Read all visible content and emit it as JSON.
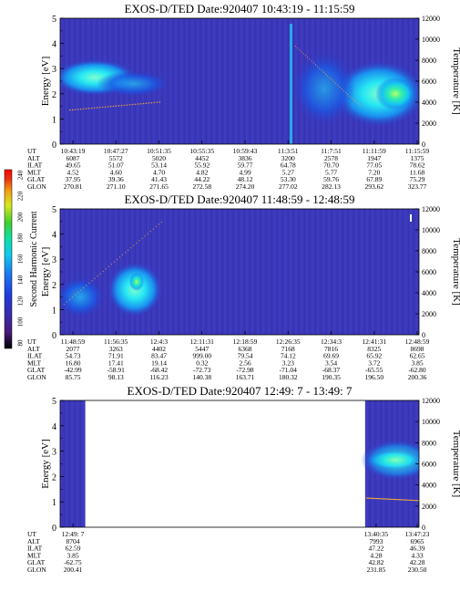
{
  "figure": {
    "colorbar": {
      "label": "Second Harmonic Current",
      "ticks": [
        "80",
        "100",
        "120",
        "140",
        "160",
        "180",
        "200",
        "220",
        "240"
      ],
      "colors": [
        "#000000",
        "#4a1a7a",
        "#3a2aa8",
        "#1e3ce0",
        "#1a7af0",
        "#11c8f0",
        "#11e0a0",
        "#3ad030",
        "#d8e820",
        "#f0a010",
        "#e83010",
        "#ff0000"
      ]
    },
    "row_labels": [
      "UT",
      "ALT",
      "ILAT",
      "MLT",
      "GLAT",
      "GLON"
    ]
  },
  "chart_data": [
    {
      "type": "heatmap",
      "title": "EXOS-D/TED   Date:920407  10:43:19 - 11:15:59",
      "ylabel": "Energy [eV]",
      "y2label": "Temperature [K]",
      "ylim": [
        0,
        5
      ],
      "y2lim": [
        0,
        12000
      ],
      "yticks": [
        "0",
        "1",
        "2",
        "3",
        "4",
        "5"
      ],
      "y2ticks": [
        "0",
        "2000",
        "4000",
        "6000",
        "8000",
        "10000",
        "12000"
      ],
      "data_intervals": [
        [
          0.0,
          1.0
        ]
      ],
      "ephemeris": {
        "UT": [
          "10:43:19",
          "10:47:27",
          "10:51:35",
          "10:55:35",
          "10:59:43",
          "11:3:51",
          "11:7:51",
          "11:11:59",
          "11:15:59"
        ],
        "ALT": [
          "6087",
          "5572",
          "5020",
          "4452",
          "3836",
          "3200",
          "2578",
          "1947",
          "1375"
        ],
        "ILAT": [
          "49.65",
          "51.07",
          "53.14",
          "55.92",
          "59.77",
          "64.78",
          "70.70",
          "77.05",
          "78.62"
        ],
        "MLT": [
          "4.52",
          "4.60",
          "4.70",
          "4.82",
          "4.99",
          "5.27",
          "5.77",
          "7.20",
          "11.68"
        ],
        "GLAT": [
          "37.95",
          "39.36",
          "41.43",
          "44.22",
          "48.12",
          "53.30",
          "59.76",
          "67.89",
          "75.29"
        ],
        "GLON": [
          "270.81",
          "271.10",
          "271.65",
          "272.58",
          "274.20",
          "277.02",
          "282.13",
          "293.62",
          "323.77"
        ]
      }
    },
    {
      "type": "heatmap",
      "title": "EXOS-D/TED   Date:920407  11:48:59 - 12:48:59",
      "ylabel": "Energy [eV]",
      "y2label": "Temperature [K]",
      "ylim": [
        0,
        5
      ],
      "y2lim": [
        0,
        12000
      ],
      "yticks": [
        "0",
        "1",
        "2",
        "3",
        "4",
        "5"
      ],
      "y2ticks": [
        "0",
        "2000",
        "4000",
        "6000",
        "8000",
        "10000",
        "12000"
      ],
      "data_intervals": [
        [
          0.0,
          1.0
        ]
      ],
      "ephemeris": {
        "UT": [
          "11:48:59",
          "11:56:35",
          "12:4:3",
          "12:11:31",
          "12:18:59",
          "12:26:35",
          "12:34:3",
          "12:41:31",
          "12:48:59"
        ],
        "ALT": [
          "2077",
          "3263",
          "4402",
          "5447",
          "6368",
          "7168",
          "7816",
          "8325",
          "8698"
        ],
        "ILAT": [
          "54.73",
          "71.91",
          "83.47",
          "999.00",
          "79.54",
          "74.12",
          "69.69",
          "65.92",
          "62.65"
        ],
        "MLT": [
          "16.80",
          "17.41",
          "19.14",
          "0.32",
          "2.56",
          "3.23",
          "3.54",
          "3.72",
          "3.85"
        ],
        "GLAT": [
          "-42.99",
          "-58.91",
          "-68.42",
          "-72.73",
          "-72.98",
          "-71.04",
          "-68.37",
          "-65.55",
          "-62.80"
        ],
        "GLON": [
          "85.75",
          "98.13",
          "116.23",
          "140.38",
          "163.71",
          "180.32",
          "190.35",
          "196.50",
          "200.36"
        ]
      }
    },
    {
      "type": "heatmap",
      "title": "EXOS-D/TED   Date:920407  12:49: 7 - 13:49: 7",
      "ylabel": "Energy [eV]",
      "y2label": "Temperature [K]",
      "ylim": [
        0,
        5
      ],
      "y2lim": [
        0,
        12000
      ],
      "yticks": [
        "0",
        "1",
        "2",
        "3",
        "4",
        "5"
      ],
      "y2ticks": [
        "0",
        "2000",
        "4000",
        "6000",
        "8000",
        "10000",
        "12000"
      ],
      "data_intervals": [
        [
          0.0,
          0.07
        ],
        [
          0.85,
          1.0
        ]
      ],
      "ephemeris": {
        "UT": [
          "12:49: 7",
          "13:40:35",
          "13:47:23"
        ],
        "ALT": [
          "8704",
          "7993",
          "6965"
        ],
        "ILAT": [
          "62.59",
          "47.22",
          "46.39"
        ],
        "MLT": [
          "3.85",
          "4.28",
          "4.33"
        ],
        "GLAT": [
          "-62.75",
          "42.82",
          "42.28"
        ],
        "GLON": [
          "200.41",
          "231.85",
          "230.50"
        ]
      }
    }
  ]
}
